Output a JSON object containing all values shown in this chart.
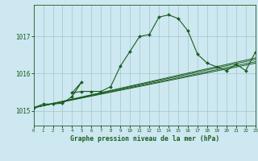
{
  "title": "Graphe pression niveau de la mer (hPa)",
  "bg_color": "#cde8f0",
  "grid_color": "#a0c8c8",
  "line_color": "#1a5c20",
  "marker_color": "#1a5c20",
  "x_min": 0,
  "x_max": 23,
  "y_min": 1014.6,
  "y_max": 1017.85,
  "y_ticks": [
    1015,
    1016,
    1017
  ],
  "x_ticks": [
    0,
    1,
    2,
    3,
    4,
    5,
    6,
    7,
    8,
    9,
    10,
    11,
    12,
    13,
    14,
    15,
    16,
    17,
    18,
    19,
    20,
    21,
    22,
    23
  ],
  "series1_x": [
    0,
    1,
    2,
    3,
    4,
    5,
    4,
    5,
    6,
    7,
    8,
    9,
    10,
    11,
    12,
    13,
    14,
    15,
    16,
    17,
    18,
    19,
    20,
    21,
    22,
    23
  ],
  "series1_y": [
    1015.08,
    1015.18,
    1015.18,
    1015.2,
    1015.38,
    1015.78,
    1015.48,
    1015.52,
    1015.52,
    1015.52,
    1015.65,
    1016.2,
    1016.6,
    1017.0,
    1017.05,
    1017.52,
    1017.58,
    1017.48,
    1017.15,
    1016.52,
    1016.28,
    1016.18,
    1016.08,
    1016.25,
    1016.08,
    1016.58
  ],
  "series2_x": [
    0,
    23
  ],
  "series2_y": [
    1015.08,
    1016.42
  ],
  "series3_x": [
    0,
    23
  ],
  "series3_y": [
    1015.08,
    1016.38
  ],
  "series4_x": [
    0,
    23
  ],
  "series4_y": [
    1015.08,
    1016.32
  ],
  "series5_x": [
    0,
    23
  ],
  "series5_y": [
    1015.08,
    1016.28
  ]
}
